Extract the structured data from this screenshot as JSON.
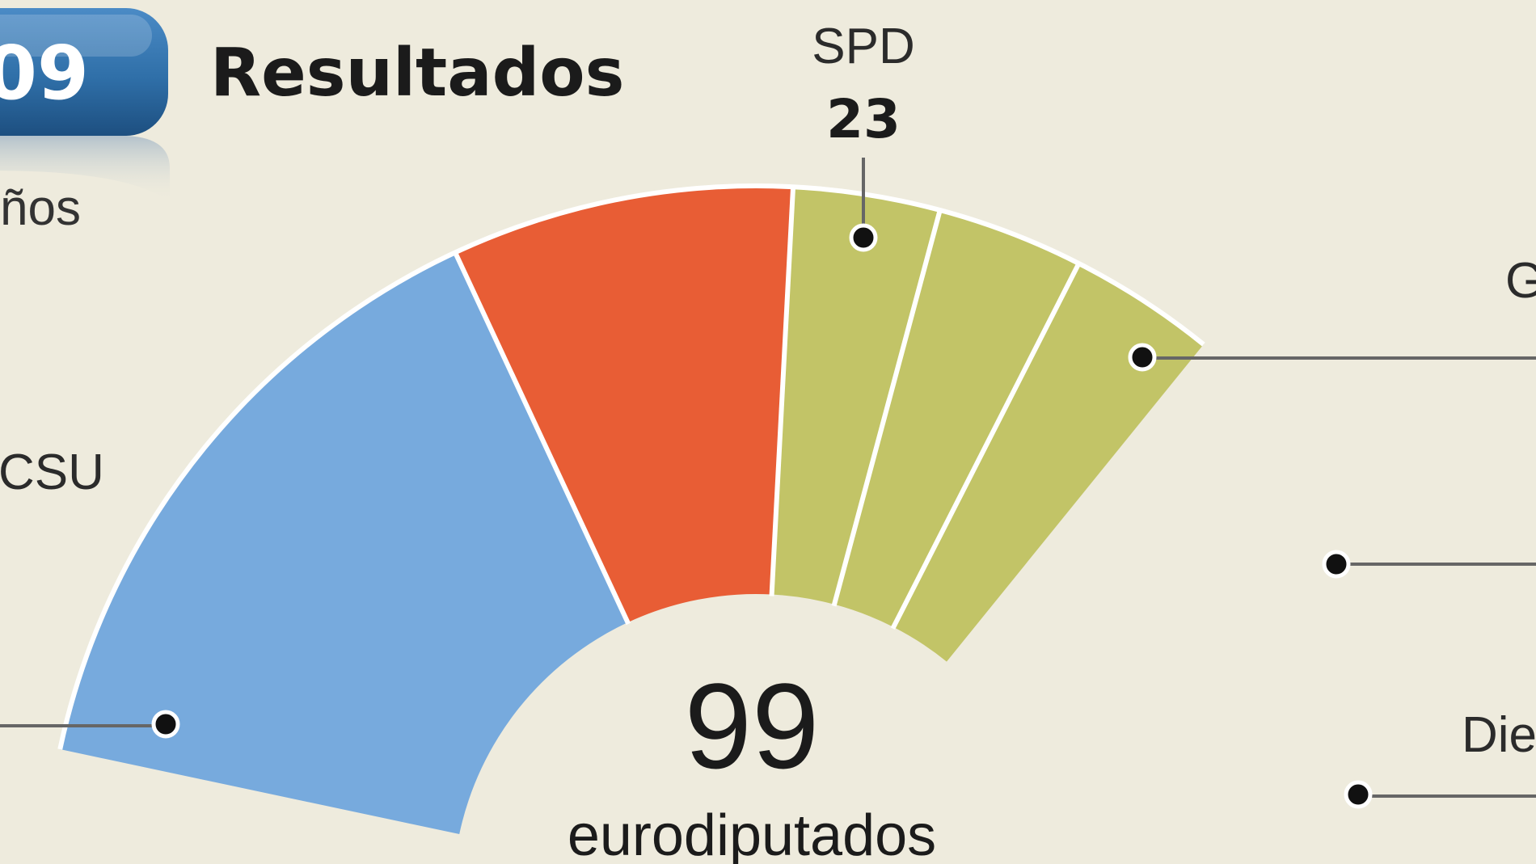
{
  "header": {
    "badge": "09",
    "title": "Resultados",
    "side_label": "ños"
  },
  "colors": {
    "background": "#eeebdd",
    "badge": "#2f6fa8",
    "cdu_csu": "#77aadd",
    "spd": "#e85d35",
    "others": "#c2c467"
  },
  "chart_data": {
    "type": "pie",
    "variant": "half-donut",
    "total": {
      "value": "99",
      "label": "eurodiputados"
    },
    "segments": [
      {
        "label": "CSU",
        "value": null,
        "color": "#77aadd"
      },
      {
        "label": "SPD",
        "value": 23,
        "color": "#e85d35"
      },
      {
        "label": "G",
        "value": null,
        "color": "#c2c467"
      },
      {
        "label": "",
        "value": null,
        "color": "#c2c467"
      },
      {
        "label": "Die",
        "value": null,
        "color": "#c2c467"
      }
    ],
    "spans_deg": [
      53,
      28,
      12,
      12,
      12
    ]
  }
}
